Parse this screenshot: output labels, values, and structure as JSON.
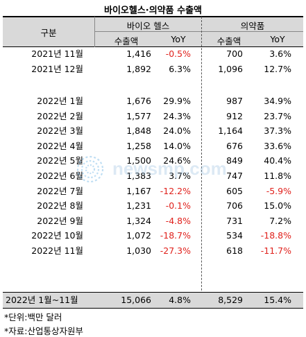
{
  "title": "바이오헬스·의약품 수출액",
  "header": {
    "col_label": "구분",
    "group1": "바이오 헬스",
    "group2": "의약품",
    "export": "수출액",
    "yoy": "YoY"
  },
  "rows_a": [
    {
      "label": "2021년 11월",
      "v1": "1,416",
      "y1": "-0.5%",
      "y1neg": true,
      "v2": "700",
      "y2": "3.6%",
      "y2neg": false
    },
    {
      "label": "2021년 12월",
      "v1": "1,892",
      "y1": "6.3%",
      "y1neg": false,
      "v2": "1,096",
      "y2": "12.7%",
      "y2neg": false
    }
  ],
  "rows_b": [
    {
      "label": "2022년 1월",
      "v1": "1,676",
      "y1": "29.9%",
      "y1neg": false,
      "v2": "987",
      "y2": "34.9%",
      "y2neg": false
    },
    {
      "label": "2022년 2월",
      "v1": "1,577",
      "y1": "24.3%",
      "y1neg": false,
      "v2": "912",
      "y2": "23.7%",
      "y2neg": false
    },
    {
      "label": "2022년 3월",
      "v1": "1,848",
      "y1": "24.0%",
      "y1neg": false,
      "v2": "1,164",
      "y2": "37.3%",
      "y2neg": false
    },
    {
      "label": "2022년 4월",
      "v1": "1,258",
      "y1": "14.0%",
      "y1neg": false,
      "v2": "676",
      "y2": "33.6%",
      "y2neg": false
    },
    {
      "label": "2022년 5월",
      "v1": "1,500",
      "y1": "24.6%",
      "y1neg": false,
      "v2": "849",
      "y2": "40.4%",
      "y2neg": false
    },
    {
      "label": "2022년 6월",
      "v1": "1,383",
      "y1": "3.7%",
      "y1neg": false,
      "v2": "747",
      "y2": "11.8%",
      "y2neg": false
    },
    {
      "label": "2022년 7월",
      "v1": "1,167",
      "y1": "-12.2%",
      "y1neg": true,
      "v2": "605",
      "y2": "-5.9%",
      "y2neg": true
    },
    {
      "label": "2022년 8월",
      "v1": "1,231",
      "y1": "-0.1%",
      "y1neg": true,
      "v2": "706",
      "y2": "15.0%",
      "y2neg": false
    },
    {
      "label": "2022년 9월",
      "v1": "1,324",
      "y1": "-4.8%",
      "y1neg": true,
      "v2": "731",
      "y2": "7.2%",
      "y2neg": false
    },
    {
      "label": "2022년 10월",
      "v1": "1,072",
      "y1": "-18.7%",
      "y1neg": true,
      "v2": "534",
      "y2": "-18.8%",
      "y2neg": true
    },
    {
      "label": "2022년 11월",
      "v1": "1,030",
      "y1": "-27.3%",
      "y1neg": true,
      "v2": "618",
      "y2": "-11.7%",
      "y2neg": true
    }
  ],
  "total": {
    "label": "2022년  1월~11월",
    "v1": "15,066",
    "y1": "4.8%",
    "v2": "8,529",
    "y2": "15.4%"
  },
  "notes": [
    "*단위:백만 달러",
    "*자료:산업통상자원부"
  ],
  "watermark": "newsmp.com"
}
